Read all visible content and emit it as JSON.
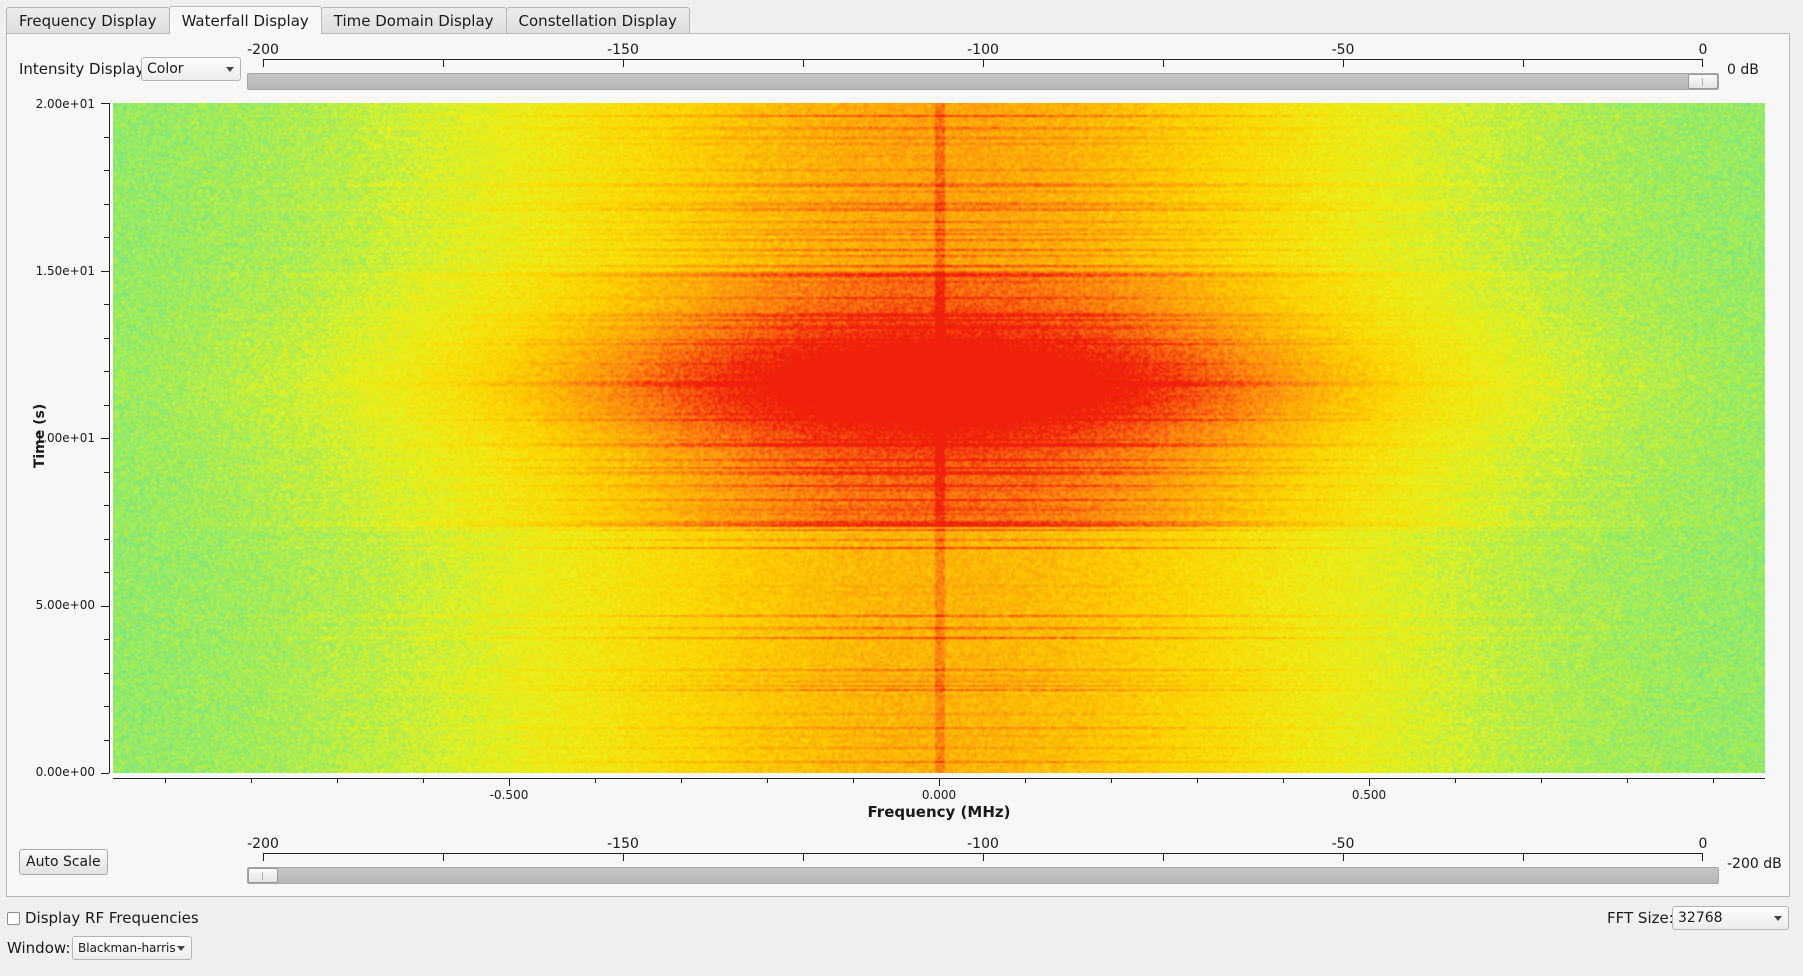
{
  "tabs": [
    {
      "label": "Frequency Display",
      "active": false
    },
    {
      "label": "Waterfall Display",
      "active": true
    },
    {
      "label": "Time Domain Display",
      "active": false
    },
    {
      "label": "Constellation Display",
      "active": false
    }
  ],
  "intensity": {
    "label": "Intensity Display:",
    "value": "Color"
  },
  "top_slider": {
    "ticks": [
      "-200",
      "-150",
      "-100",
      "-50",
      "0"
    ],
    "value_label": "0 dB",
    "value_db": 0
  },
  "bottom_slider": {
    "ticks": [
      "-200",
      "-150",
      "-100",
      "-50",
      "0"
    ],
    "value_label": "-200 dB",
    "value_db": -200
  },
  "auto_scale_label": "Auto Scale",
  "rf_checkbox": {
    "label": "Display RF Frequencies",
    "checked": false
  },
  "fft": {
    "label": "FFT Size:",
    "value": "32768"
  },
  "window": {
    "label": "Window:",
    "value": "Blackman-harris"
  },
  "chart_data": {
    "type": "heatmap",
    "xlabel": "Frequency (MHz)",
    "ylabel": "Time (s)",
    "x_ticks": [
      "-0.500",
      "0.000",
      "0.500"
    ],
    "x_tick_values": [
      -0.5,
      0.0,
      0.5
    ],
    "y_ticks": [
      "2.00e+01",
      "1.50e+01",
      "1.00e+01",
      "5.00e+00",
      "0.00e+00"
    ],
    "y_tick_values": [
      20,
      15,
      10,
      5,
      0
    ],
    "xlim": [
      -0.96,
      0.96
    ],
    "ylim": [
      0,
      20
    ],
    "colormap": [
      "#3fd2b0",
      "#7fe87a",
      "#e8f21c",
      "#ffd200",
      "#ff8a10",
      "#f0200c"
    ],
    "z_range_db": [
      -200,
      0
    ],
    "center_frequency_mhz": 0.0
  }
}
